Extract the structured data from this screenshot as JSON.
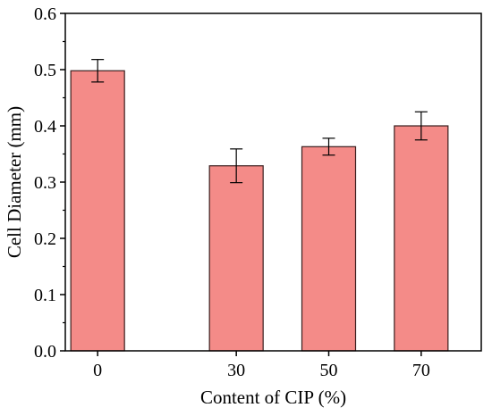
{
  "chart_data": {
    "type": "bar",
    "categories": [
      "0",
      "30",
      "50",
      "70"
    ],
    "x": [
      0,
      30,
      50,
      70
    ],
    "values": [
      0.498,
      0.329,
      0.363,
      0.4
    ],
    "error": [
      0.02,
      0.03,
      0.015,
      0.025
    ],
    "title": "",
    "xlabel": "Content of CIP (%)",
    "ylabel": "Cell Diameter (mm)",
    "ylim": [
      0,
      0.6
    ],
    "yticks": [
      "0.0",
      "0.1",
      "0.2",
      "0.3",
      "0.4",
      "0.5",
      "0.6"
    ],
    "xlim": [
      -7,
      83
    ],
    "grid": false,
    "legend": "none",
    "bar_color": "#F48B88",
    "bar_edge_color": "#3a1e1e"
  }
}
